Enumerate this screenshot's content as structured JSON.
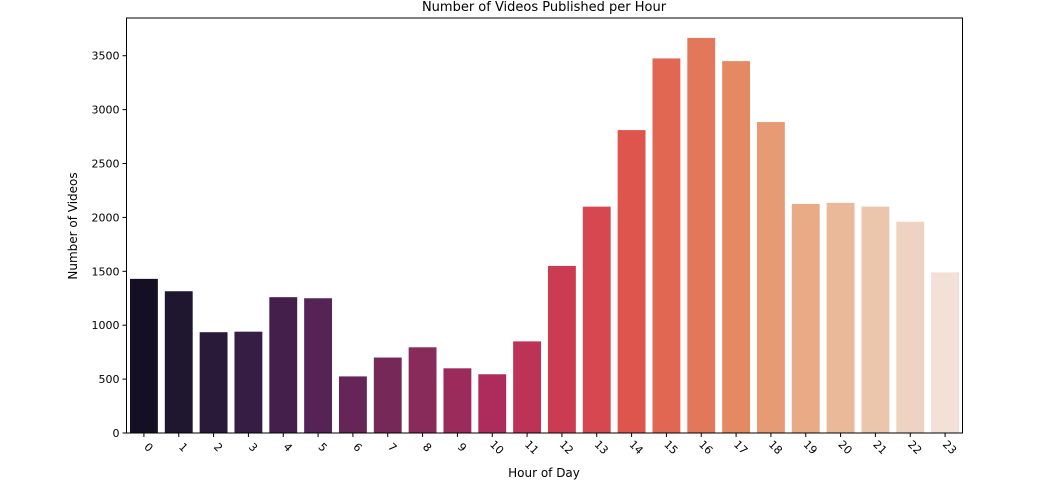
{
  "chart_data": {
    "type": "bar",
    "title": "Number of Videos Published per Hour",
    "xlabel": "Hour of Day",
    "ylabel": "Number of Videos",
    "categories": [
      "0",
      "1",
      "2",
      "3",
      "4",
      "5",
      "6",
      "7",
      "8",
      "9",
      "10",
      "11",
      "12",
      "13",
      "14",
      "15",
      "16",
      "17",
      "18",
      "19",
      "20",
      "21",
      "22",
      "23"
    ],
    "values": [
      1430,
      1315,
      935,
      940,
      1260,
      1250,
      525,
      700,
      795,
      600,
      545,
      850,
      1550,
      2100,
      2810,
      3475,
      3665,
      3450,
      2885,
      2125,
      2135,
      2100,
      1960,
      1490
    ],
    "yticks": [
      0,
      500,
      1000,
      1500,
      2000,
      2500,
      3000,
      3500
    ],
    "ylim": [
      0,
      3850
    ],
    "grid": false,
    "palette": [
      "#140f22",
      "#1f1630",
      "#2a1a3a",
      "#361d44",
      "#451f4c",
      "#552355",
      "#662557",
      "#762859",
      "#882b5b",
      "#9a2b5b",
      "#ad2c5b",
      "#bd3257",
      "#cb3b52",
      "#d6474f",
      "#de554e",
      "#e26752",
      "#e3775a",
      "#e58963",
      "#e79b75",
      "#e8ab86",
      "#eab99a",
      "#ecc5ad",
      "#efd3c2",
      "#f3e0d6"
    ]
  }
}
